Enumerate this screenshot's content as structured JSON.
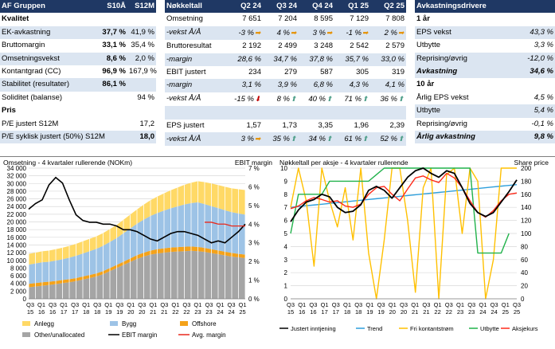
{
  "left_table": {
    "headers": [
      "AF Gruppen",
      "S10Å",
      "S12M"
    ],
    "rows": [
      {
        "label": "Kvalitet",
        "a": "",
        "b": "",
        "section": true
      },
      {
        "label": "EK-avkastning",
        "a": "37,7 %",
        "b": "41,9 %"
      },
      {
        "label": "Bruttomargin",
        "a": "33,1 %",
        "b": "35,4 %"
      },
      {
        "label": "Omsetningsvekst",
        "a": "8,6 %",
        "b": "2,0 %"
      },
      {
        "label": "Kontantgrad (CC)",
        "a": "96,9 %",
        "b": "167,9 %"
      },
      {
        "label": "Stabilitet (resultater)",
        "a": "86,1 %",
        "b": ""
      },
      {
        "label": "Soliditet (balanse)",
        "a": "",
        "b": "94 %"
      },
      {
        "label": "Pris",
        "a": "",
        "b": "",
        "section": true
      },
      {
        "label": "P/E justert S12M",
        "a": "",
        "b": "17,2"
      },
      {
        "label": "P/E syklisk justert (50%) S12M",
        "a": "",
        "b": "18,0"
      }
    ]
  },
  "mid_table": {
    "headers": [
      "Nøkkeltall",
      "Q2 24",
      "Q3 24",
      "Q4 24",
      "Q1 25",
      "Q2 25"
    ],
    "rows": [
      {
        "label": "Omsetning",
        "vals": [
          "7 651",
          "7 204",
          "8 595",
          "7 129",
          "7 808"
        ],
        "style": "normal"
      },
      {
        "label": "-vekst Å/Å",
        "vals": [
          "-3 %",
          "4 %",
          "3 %",
          "-1 %",
          "2 %"
        ],
        "icons": [
          "arrow-right",
          "arrow-right",
          "arrow-right",
          "arrow-right",
          "arrow-right"
        ],
        "style": "italic"
      },
      {
        "label": "Bruttoresultat",
        "vals": [
          "2 192",
          "2 499",
          "3 248",
          "2 542",
          "2 579"
        ],
        "style": "normal"
      },
      {
        "label": "-margin",
        "vals": [
          "28,6 %",
          "34,7 %",
          "37,8 %",
          "35,7 %",
          "33,0 %"
        ],
        "style": "italic"
      },
      {
        "label": "EBIT justert",
        "vals": [
          "234",
          "279",
          "587",
          "305",
          "319"
        ],
        "style": "normal"
      },
      {
        "label": "-margin",
        "vals": [
          "3,1 %",
          "3,9 %",
          "6,8 %",
          "4,3 %",
          "4,1 %"
        ],
        "style": "italic"
      },
      {
        "label": "-vekst Å/Å",
        "vals": [
          "-15 %",
          "8 %",
          "40 %",
          "71 %",
          "36 %"
        ],
        "icons": [
          "arrow-down",
          "arrow-up",
          "arrow-up",
          "arrow-up",
          "arrow-up"
        ],
        "style": "italic"
      },
      {
        "label": "",
        "vals": [
          "",
          "",
          "",
          "",
          ""
        ],
        "style": "normal"
      },
      {
        "label": "EPS justert",
        "vals": [
          "1,57",
          "1,73",
          "3,35",
          "1,96",
          "2,39"
        ],
        "style": "normal"
      },
      {
        "label": "-vekst Å/Å",
        "vals": [
          "3 %",
          "35 %",
          "34 %",
          "61 %",
          "52 %"
        ],
        "icons": [
          "arrow-right",
          "arrow-up",
          "arrow-up",
          "arrow-up",
          "arrow-up"
        ],
        "style": "italic"
      }
    ]
  },
  "right_table": {
    "headers": [
      "Avkastningsdrivere",
      ""
    ],
    "rows": [
      {
        "label": "1 år",
        "val": "",
        "kind": "section"
      },
      {
        "label": "EPS vekst",
        "val": "43,3 %",
        "kind": "normal"
      },
      {
        "label": "Utbytte",
        "val": "3,3 %",
        "kind": "normal"
      },
      {
        "label": "Reprising/øvrig",
        "val": "-12,0 %",
        "kind": "normal"
      },
      {
        "label": "Avkastning",
        "val": "34,6 %",
        "kind": "total"
      },
      {
        "label": "10 år",
        "val": "",
        "kind": "section"
      },
      {
        "label": "Årlig EPS vekst",
        "val": "4,5 %",
        "kind": "normal"
      },
      {
        "label": "Utbytte",
        "val": "5,4 %",
        "kind": "normal"
      },
      {
        "label": "Reprising/øvrig",
        "val": "-0,1 %",
        "kind": "normal"
      },
      {
        "label": "Årlig avkastning",
        "val": "9,8 %",
        "kind": "total"
      }
    ]
  },
  "chart_data": [
    {
      "type": "area",
      "title": "Omsetning - 4 kvartaler rullerende (NOKm)",
      "y2label": "EBIT margin",
      "ylim": [
        0,
        34000
      ],
      "y2lim": [
        0,
        0.07
      ],
      "yticks": [
        "0",
        "2 000",
        "4 000",
        "6 000",
        "8 000",
        "10 000",
        "12 000",
        "14 000",
        "16 000",
        "18 000",
        "20 000",
        "22 000",
        "24 000",
        "26 000",
        "28 000",
        "30 000",
        "32 000",
        "34 000"
      ],
      "y2ticks": [
        "0 %",
        "1 %",
        "2 %",
        "3 %",
        "4 %",
        "5 %",
        "6 %",
        "7 %"
      ],
      "xticks": [
        [
          "Q3",
          "15"
        ],
        [
          "Q1",
          "16"
        ],
        [
          "Q3",
          "16"
        ],
        [
          "Q1",
          "17"
        ],
        [
          "Q3",
          "17"
        ],
        [
          "Q1",
          "18"
        ],
        [
          "Q3",
          "18"
        ],
        [
          "Q1",
          "19"
        ],
        [
          "Q3",
          "19"
        ],
        [
          "Q1",
          "20"
        ],
        [
          "Q3",
          "20"
        ],
        [
          "Q1",
          "21"
        ],
        [
          "Q3",
          "21"
        ],
        [
          "Q1",
          "22"
        ],
        [
          "Q3",
          "22"
        ],
        [
          "Q1",
          "23"
        ],
        [
          "Q3",
          "23"
        ],
        [
          "Q1",
          "24"
        ],
        [
          "Q3",
          "24"
        ],
        [
          "Q1",
          "25"
        ]
      ],
      "series": [
        {
          "name": "Other/unallocated",
          "color": "#a5a5a5",
          "values": [
            3000,
            3200,
            3400,
            3600,
            3800,
            4100,
            4300,
            4600,
            5000,
            5400,
            5800,
            6400,
            7200,
            8000,
            8800,
            9600,
            10400,
            11000,
            11500,
            11800,
            12000,
            12200,
            12300,
            12400,
            12500,
            12400,
            12200,
            11900,
            11600,
            11300,
            11000,
            10800,
            10600
          ]
        },
        {
          "name": "Offshore",
          "color": "#f4a21a",
          "values": [
            900,
            900,
            900,
            850,
            850,
            800,
            800,
            800,
            800,
            800,
            800,
            800,
            800,
            800,
            850,
            900,
            950,
            1000,
            1050,
            1100,
            1150,
            1150,
            1150,
            1150,
            1100,
            1100,
            1050,
            1000,
            1000,
            950,
            950,
            900,
            900
          ]
        },
        {
          "name": "Bygg",
          "color": "#9dc3e6",
          "values": [
            5000,
            5100,
            5200,
            5200,
            5300,
            5400,
            5600,
            5800,
            6000,
            6200,
            6400,
            6600,
            6800,
            7000,
            7400,
            7800,
            8200,
            8600,
            9000,
            9400,
            9800,
            10200,
            10600,
            11000,
            11300,
            11600,
            11400,
            11200,
            11000,
            10800,
            10600,
            10500,
            10400
          ]
        },
        {
          "name": "Anlegg",
          "color": "#ffd966",
          "values": [
            2800,
            2800,
            2850,
            2900,
            2950,
            3000,
            3050,
            3100,
            3150,
            3200,
            3250,
            3300,
            3350,
            3400,
            3500,
            3600,
            3700,
            3900,
            4100,
            4300,
            4500,
            4700,
            4900,
            5100,
            5300,
            5500,
            5700,
            5900,
            6000,
            6100,
            6200,
            6300,
            6400
          ]
        },
        {
          "name": "EBIT margin",
          "color": "#000000",
          "values": [
            0.048,
            0.051,
            0.053,
            0.061,
            0.065,
            0.062,
            0.053,
            0.045,
            0.042,
            0.041,
            0.041,
            0.04,
            0.04,
            0.039,
            0.037,
            0.037,
            0.036,
            0.034,
            0.032,
            0.031,
            0.033,
            0.035,
            0.036,
            0.036,
            0.035,
            0.034,
            0.032,
            0.03,
            0.031,
            0.03,
            0.033,
            0.036,
            0.04
          ]
        },
        {
          "name": "Avg. margin",
          "color": "#e8291c",
          "values": [
            null,
            null,
            null,
            null,
            null,
            null,
            null,
            null,
            null,
            null,
            null,
            null,
            null,
            null,
            null,
            null,
            null,
            null,
            null,
            null,
            null,
            null,
            null,
            null,
            null,
            null,
            0.041,
            0.041,
            0.04,
            0.04,
            0.039,
            0.039,
            0.039
          ]
        }
      ]
    },
    {
      "type": "line",
      "title": "Nøkkeltall per aksje - 4 kvartaler rullerende",
      "y2label": "Share price",
      "ylim": [
        0,
        10
      ],
      "y2lim": [
        0,
        200
      ],
      "yticks": [
        "0",
        "1",
        "2",
        "3",
        "4",
        "5",
        "6",
        "7",
        "8",
        "9",
        "10"
      ],
      "y2ticks": [
        "0",
        "20",
        "40",
        "60",
        "80",
        "100",
        "120",
        "140",
        "160",
        "180",
        "200"
      ],
      "xticks": [
        [
          "Q3",
          "15"
        ],
        [
          "Q1",
          "16"
        ],
        [
          "Q3",
          "16"
        ],
        [
          "Q1",
          "17"
        ],
        [
          "Q3",
          "17"
        ],
        [
          "Q1",
          "18"
        ],
        [
          "Q3",
          "18"
        ],
        [
          "Q1",
          "19"
        ],
        [
          "Q3",
          "19"
        ],
        [
          "Q1",
          "20"
        ],
        [
          "Q3",
          "20"
        ],
        [
          "Q1",
          "21"
        ],
        [
          "Q3",
          "21"
        ],
        [
          "Q1",
          "22"
        ],
        [
          "Q3",
          "22"
        ],
        [
          "Q1",
          "23"
        ],
        [
          "Q3",
          "23"
        ],
        [
          "Q1",
          "24"
        ],
        [
          "Q3",
          "24"
        ],
        [
          "Q1",
          "25"
        ],
        [
          "Q3",
          "25"
        ]
      ],
      "series": [
        {
          "name": "Justert inntjening",
          "color": "#000000",
          "values": [
            5.9,
            6.8,
            7.4,
            7.6,
            8.0,
            7.8,
            7.0,
            6.6,
            6.7,
            7.2,
            8.3,
            8.6,
            8.3,
            7.7,
            8.5,
            9.3,
            9.8,
            10.0,
            9.6,
            9.3,
            9.8,
            9.6,
            8.5,
            7.3,
            6.6,
            6.3,
            6.6,
            7.4,
            8.2,
            9.1
          ]
        },
        {
          "name": "Trend",
          "color": "#2e9fdc",
          "values": [
            7.0,
            7.06,
            7.12,
            7.18,
            7.24,
            7.3,
            7.36,
            7.42,
            7.48,
            7.54,
            7.6,
            7.66,
            7.72,
            7.78,
            7.84,
            7.9,
            7.96,
            8.02,
            8.08,
            8.14,
            8.2,
            8.26,
            8.32,
            8.38,
            8.44,
            8.5,
            8.56,
            8.62,
            8.68,
            8.74
          ]
        },
        {
          "name": "Fri kontantstrøm",
          "color": "#ffc000",
          "values": [
            7.0,
            10.0,
            7.5,
            2.5,
            10.0,
            7.5,
            5.5,
            8.5,
            4.5,
            10.0,
            3.5,
            0.0,
            4.5,
            10.0,
            10.0,
            6.0,
            0.5,
            8.5,
            10.0,
            0.0,
            9.5,
            10.0,
            5.0,
            10.0,
            9.0,
            0.0,
            3.0,
            10.0,
            10.0,
            10.0
          ]
        },
        {
          "name": "Utbytte",
          "color": "#21b24b",
          "values": [
            5.0,
            8.0,
            8.0,
            8.0,
            8.0,
            9.0,
            9.0,
            9.0,
            9.0,
            9.0,
            9.0,
            9.5,
            10.0,
            10.0,
            10.0,
            10.0,
            10.0,
            10.0,
            10.0,
            10.0,
            10.0,
            10.0,
            10.0,
            10.0,
            3.5,
            3.5,
            3.5,
            3.5,
            5.0,
            null
          ]
        },
        {
          "name": "Aksjekurs",
          "color": "#ff2a1a",
          "values": [
            138,
            142,
            150,
            155,
            152,
            148,
            150,
            142,
            140,
            145,
            160,
            170,
            172,
            160,
            150,
            168,
            185,
            188,
            182,
            178,
            192,
            185,
            170,
            150,
            132,
            125,
            135,
            150,
            160,
            162
          ]
        }
      ]
    }
  ]
}
